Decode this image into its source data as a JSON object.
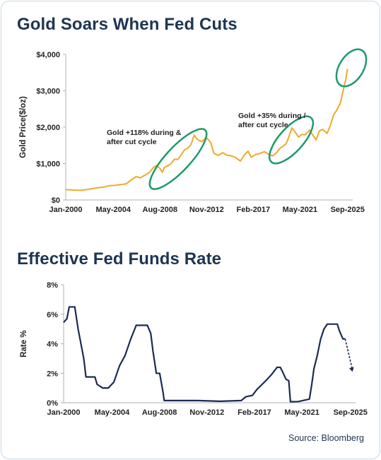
{
  "gold_title": "Gold Soars When Fed Cuts",
  "rate_title": "Effective Fed Funds Rate",
  "source": "Source: Bloomberg",
  "colors": {
    "gold_line": "#f0a92a",
    "rate_line": "#1b2b55",
    "highlight_ellipse": "#1e9a6c",
    "title": "#1e3551"
  },
  "chart_data": [
    {
      "type": "line",
      "title": "Gold Soars When Fed Cuts",
      "ylabel": "Gold Price($/oz)",
      "xlabel": "",
      "xlim": [
        2000.0,
        2025.75
      ],
      "ylim": [
        0,
        4000
      ],
      "y_ticks": [
        0,
        1000,
        2000,
        3000,
        4000
      ],
      "y_tick_labels": [
        "$0",
        "$1,000",
        "$2,000",
        "$3,000",
        "$4,000"
      ],
      "x_ticks": [
        {
          "label": "Jan-2000",
          "x": 2000.0
        },
        {
          "label": "May-2004",
          "x": 2004.33
        },
        {
          "label": "Aug-2008",
          "x": 2008.58
        },
        {
          "label": "Nov-2012",
          "x": 2012.83
        },
        {
          "label": "Feb-2017",
          "x": 2017.08
        },
        {
          "label": "May-2021",
          "x": 2021.33
        },
        {
          "label": "Sep-2025",
          "x": 2025.67
        }
      ],
      "grid": false,
      "series": [
        {
          "x": [
            2000.0,
            2000.5,
            2001.0,
            2001.5,
            2002.0,
            2002.5,
            2003.0,
            2003.5,
            2004.0,
            2004.5,
            2005.0,
            2005.5,
            2006.0,
            2006.4,
            2006.8,
            2007.2,
            2007.6,
            2008.0,
            2008.3,
            2008.6,
            2008.8,
            2009.0,
            2009.3,
            2009.6,
            2009.9,
            2010.2,
            2010.5,
            2010.8,
            2011.1,
            2011.4,
            2011.7,
            2012.0,
            2012.4,
            2012.8,
            2013.2,
            2013.5,
            2013.9,
            2014.3,
            2014.7,
            2015.0,
            2015.4,
            2015.9,
            2016.3,
            2016.6,
            2016.9,
            2017.3,
            2017.7,
            2018.1,
            2018.6,
            2018.9,
            2019.2,
            2019.5,
            2019.8,
            2020.1,
            2020.3,
            2020.6,
            2020.9,
            2021.2,
            2021.5,
            2021.8,
            2022.2,
            2022.5,
            2022.8,
            2023.1,
            2023.4,
            2023.8,
            2024.1,
            2024.4,
            2024.7,
            2025.0,
            2025.3,
            2025.5,
            2025.65
          ],
          "values": [
            285,
            275,
            268,
            270,
            290,
            315,
            340,
            355,
            395,
            400,
            425,
            440,
            560,
            640,
            610,
            680,
            750,
            900,
            950,
            860,
            760,
            900,
            940,
            1000,
            1120,
            1110,
            1230,
            1370,
            1420,
            1520,
            1780,
            1660,
            1600,
            1720,
            1580,
            1280,
            1230,
            1300,
            1230,
            1220,
            1180,
            1070,
            1250,
            1340,
            1170,
            1250,
            1280,
            1330,
            1230,
            1220,
            1300,
            1420,
            1480,
            1560,
            1720,
            1980,
            1860,
            1730,
            1800,
            1790,
            1920,
            1780,
            1650,
            1900,
            1940,
            1830,
            2050,
            2340,
            2480,
            2650,
            3050,
            3300,
            3600
          ]
        }
      ],
      "annotations": [
        {
          "lines": [
            "Gold +118% during &",
            "after cut cycle"
          ]
        },
        {
          "lines": [
            "Gold +35% during /",
            "after cut cycle"
          ]
        }
      ]
    },
    {
      "type": "line",
      "title": "Effective Fed Funds Rate",
      "ylabel": "Rate %",
      "xlabel": "",
      "xlim": [
        2000.0,
        2025.75
      ],
      "ylim": [
        0,
        8
      ],
      "y_ticks": [
        0,
        2,
        4,
        6,
        8
      ],
      "y_tick_labels": [
        "0%",
        "2%",
        "4%",
        "6%",
        "8%"
      ],
      "x_ticks": [
        {
          "label": "Jan-2000",
          "x": 2000.0
        },
        {
          "label": "May-2004",
          "x": 2004.33
        },
        {
          "label": "Aug-2008",
          "x": 2008.58
        },
        {
          "label": "Nov-2012",
          "x": 2012.83
        },
        {
          "label": "Feb-2017",
          "x": 2017.08
        },
        {
          "label": "May-2021",
          "x": 2021.33
        },
        {
          "label": "Sep-2025",
          "x": 2025.67
        }
      ],
      "grid": false,
      "series": [
        {
          "x": [
            2000.0,
            2000.3,
            2000.5,
            2001.0,
            2001.3,
            2001.6,
            2001.8,
            2002.0,
            2002.8,
            2003.0,
            2003.5,
            2004.0,
            2004.5,
            2005.0,
            2005.5,
            2006.0,
            2006.5,
            2007.0,
            2007.5,
            2007.8,
            2008.0,
            2008.3,
            2008.6,
            2008.9,
            2009.0,
            2010.0,
            2012.0,
            2014.0,
            2015.9,
            2016.3,
            2016.9,
            2017.3,
            2017.7,
            2018.1,
            2018.6,
            2019.1,
            2019.4,
            2019.6,
            2019.9,
            2020.15,
            2020.3,
            2021.0,
            2022.0,
            2022.2,
            2022.4,
            2022.7,
            2023.0,
            2023.3,
            2023.6,
            2024.0,
            2024.5,
            2024.7,
            2025.0,
            2025.2
          ],
          "values": [
            5.45,
            5.7,
            6.5,
            6.5,
            5.0,
            3.8,
            3.0,
            1.75,
            1.75,
            1.25,
            1.0,
            1.0,
            1.4,
            2.5,
            3.2,
            4.3,
            5.25,
            5.25,
            5.25,
            4.7,
            3.5,
            2.0,
            2.0,
            0.7,
            0.15,
            0.15,
            0.15,
            0.1,
            0.15,
            0.4,
            0.5,
            0.9,
            1.2,
            1.5,
            1.9,
            2.4,
            2.4,
            2.1,
            1.6,
            1.5,
            0.07,
            0.08,
            0.25,
            1.2,
            2.3,
            3.2,
            4.3,
            5.0,
            5.33,
            5.33,
            5.33,
            4.85,
            4.33,
            4.33
          ]
        },
        {
          "name": "",
          "style": "dashed-arrow",
          "x": [
            2025.2,
            2025.85
          ],
          "values": [
            4.33,
            2.1
          ]
        }
      ]
    }
  ]
}
